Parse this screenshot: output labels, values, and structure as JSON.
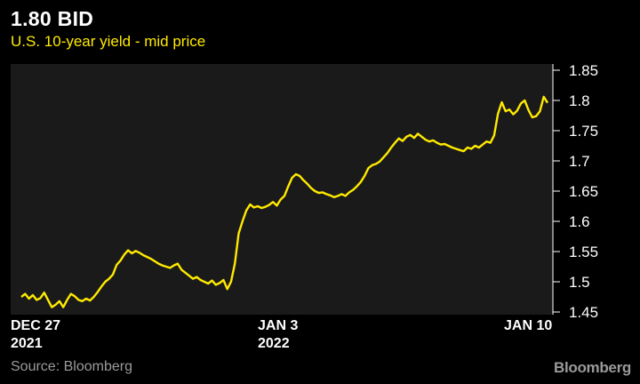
{
  "header": {
    "title": "1.80 BID",
    "subtitle": "U.S. 10-year yield - mid price"
  },
  "footer": {
    "source": "Source: Bloomberg",
    "brand": "Bloomberg"
  },
  "colors": {
    "background": "#000000",
    "plot_background": "#1a1a1a",
    "line": "#ffea00",
    "text": "#ffffff",
    "muted_text": "#9a9a9a"
  },
  "chart_data": {
    "type": "line",
    "title": "1.80 BID",
    "subtitle": "U.S. 10-year yield - mid price",
    "xlabel": "",
    "ylabel": "",
    "ylim": [
      1.45,
      1.85
    ],
    "y_ticks": [
      "1.85",
      "1.8",
      "1.75",
      "1.7",
      "1.65",
      "1.6",
      "1.55",
      "1.5",
      "1.45"
    ],
    "y_tick_values": [
      1.85,
      1.8,
      1.75,
      1.7,
      1.65,
      1.6,
      1.55,
      1.5,
      1.45
    ],
    "y_axis_position": "right",
    "x_ticks": [
      {
        "line1": "DEC 27",
        "line2": "2021"
      },
      {
        "line1": "JAN 3",
        "line2": "2022"
      },
      {
        "line1": "JAN 10",
        "line2": ""
      }
    ],
    "grid": false,
    "legend": "none",
    "series": [
      {
        "values": [
          1.475,
          1.48,
          1.472,
          1.478,
          1.47,
          1.473,
          1.482,
          1.47,
          1.458,
          1.462,
          1.468,
          1.458,
          1.47,
          1.48,
          1.476,
          1.47,
          1.468,
          1.472,
          1.469,
          1.475,
          1.483,
          1.492,
          1.5,
          1.505,
          1.512,
          1.528,
          1.535,
          1.545,
          1.552,
          1.547,
          1.551,
          1.548,
          1.544,
          1.541,
          1.538,
          1.534,
          1.53,
          1.527,
          1.525,
          1.523,
          1.527,
          1.53,
          1.52,
          1.515,
          1.51,
          1.505,
          1.508,
          1.503,
          1.5,
          1.497,
          1.502,
          1.495,
          1.498,
          1.503,
          1.488,
          1.5,
          1.53,
          1.58,
          1.6,
          1.618,
          1.628,
          1.623,
          1.625,
          1.622,
          1.624,
          1.627,
          1.632,
          1.626,
          1.636,
          1.642,
          1.658,
          1.672,
          1.678,
          1.675,
          1.668,
          1.662,
          1.655,
          1.65,
          1.647,
          1.648,
          1.645,
          1.643,
          1.64,
          1.642,
          1.645,
          1.642,
          1.648,
          1.652,
          1.658,
          1.665,
          1.675,
          1.688,
          1.693,
          1.695,
          1.699,
          1.706,
          1.713,
          1.722,
          1.73,
          1.737,
          1.733,
          1.74,
          1.743,
          1.738,
          1.745,
          1.74,
          1.735,
          1.732,
          1.734,
          1.73,
          1.727,
          1.728,
          1.725,
          1.722,
          1.72,
          1.718,
          1.716,
          1.722,
          1.72,
          1.725,
          1.722,
          1.727,
          1.732,
          1.73,
          1.742,
          1.778,
          1.797,
          1.782,
          1.785,
          1.777,
          1.783,
          1.795,
          1.8,
          1.784,
          1.772,
          1.774,
          1.782,
          1.806,
          1.796
        ]
      }
    ]
  }
}
